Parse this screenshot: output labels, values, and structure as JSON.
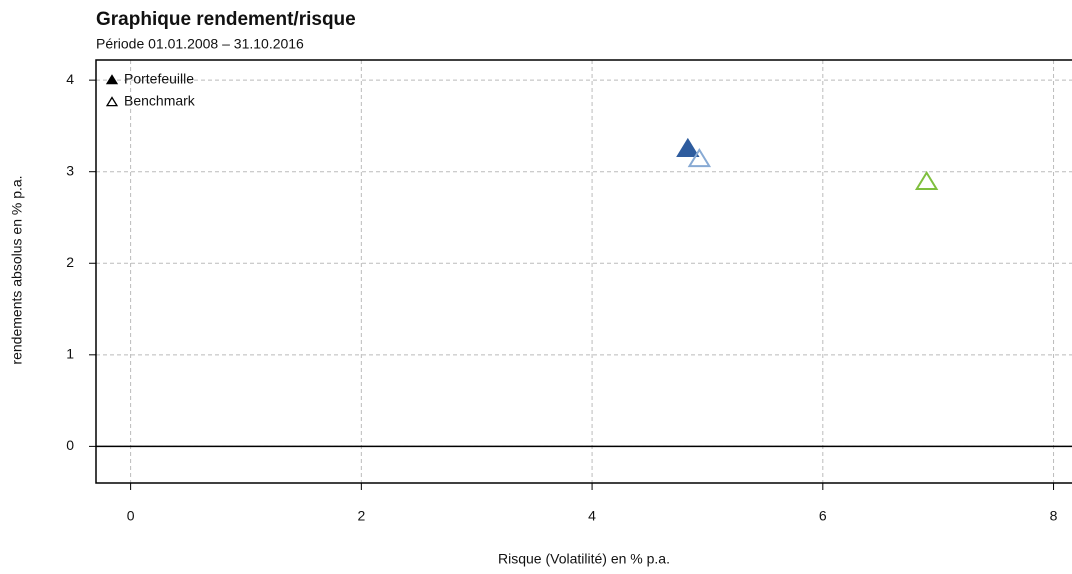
{
  "chart_data": {
    "type": "scatter",
    "title": "Graphique rendement/risque",
    "subtitle": "Période 01.01.2008 – 31.10.2016",
    "x_label": "Risque (Volatilité) en % p.a.",
    "y_label": "rendements absolus en % p.a.",
    "xlim": [
      -0.3,
      8.16
    ],
    "ylim": [
      -0.4,
      4.22
    ],
    "xticks": [
      0,
      2,
      4,
      6,
      8
    ],
    "yticks": [
      0,
      1,
      2,
      3,
      4
    ],
    "grid": true,
    "zero_line": true,
    "legend_position": "top-left",
    "legend": [
      {
        "label": "Portefeuille",
        "filled": true
      },
      {
        "label": "Benchmark",
        "filled": false
      }
    ],
    "points": [
      {
        "x": 4.83,
        "y": 3.25,
        "color": "#2e5c9e",
        "filled": true
      },
      {
        "x": 4.93,
        "y": 3.14,
        "color": "#88aad4",
        "filled": false
      },
      {
        "x": 6.9,
        "y": 2.89,
        "color": "#7fbf3f",
        "filled": false
      }
    ]
  }
}
